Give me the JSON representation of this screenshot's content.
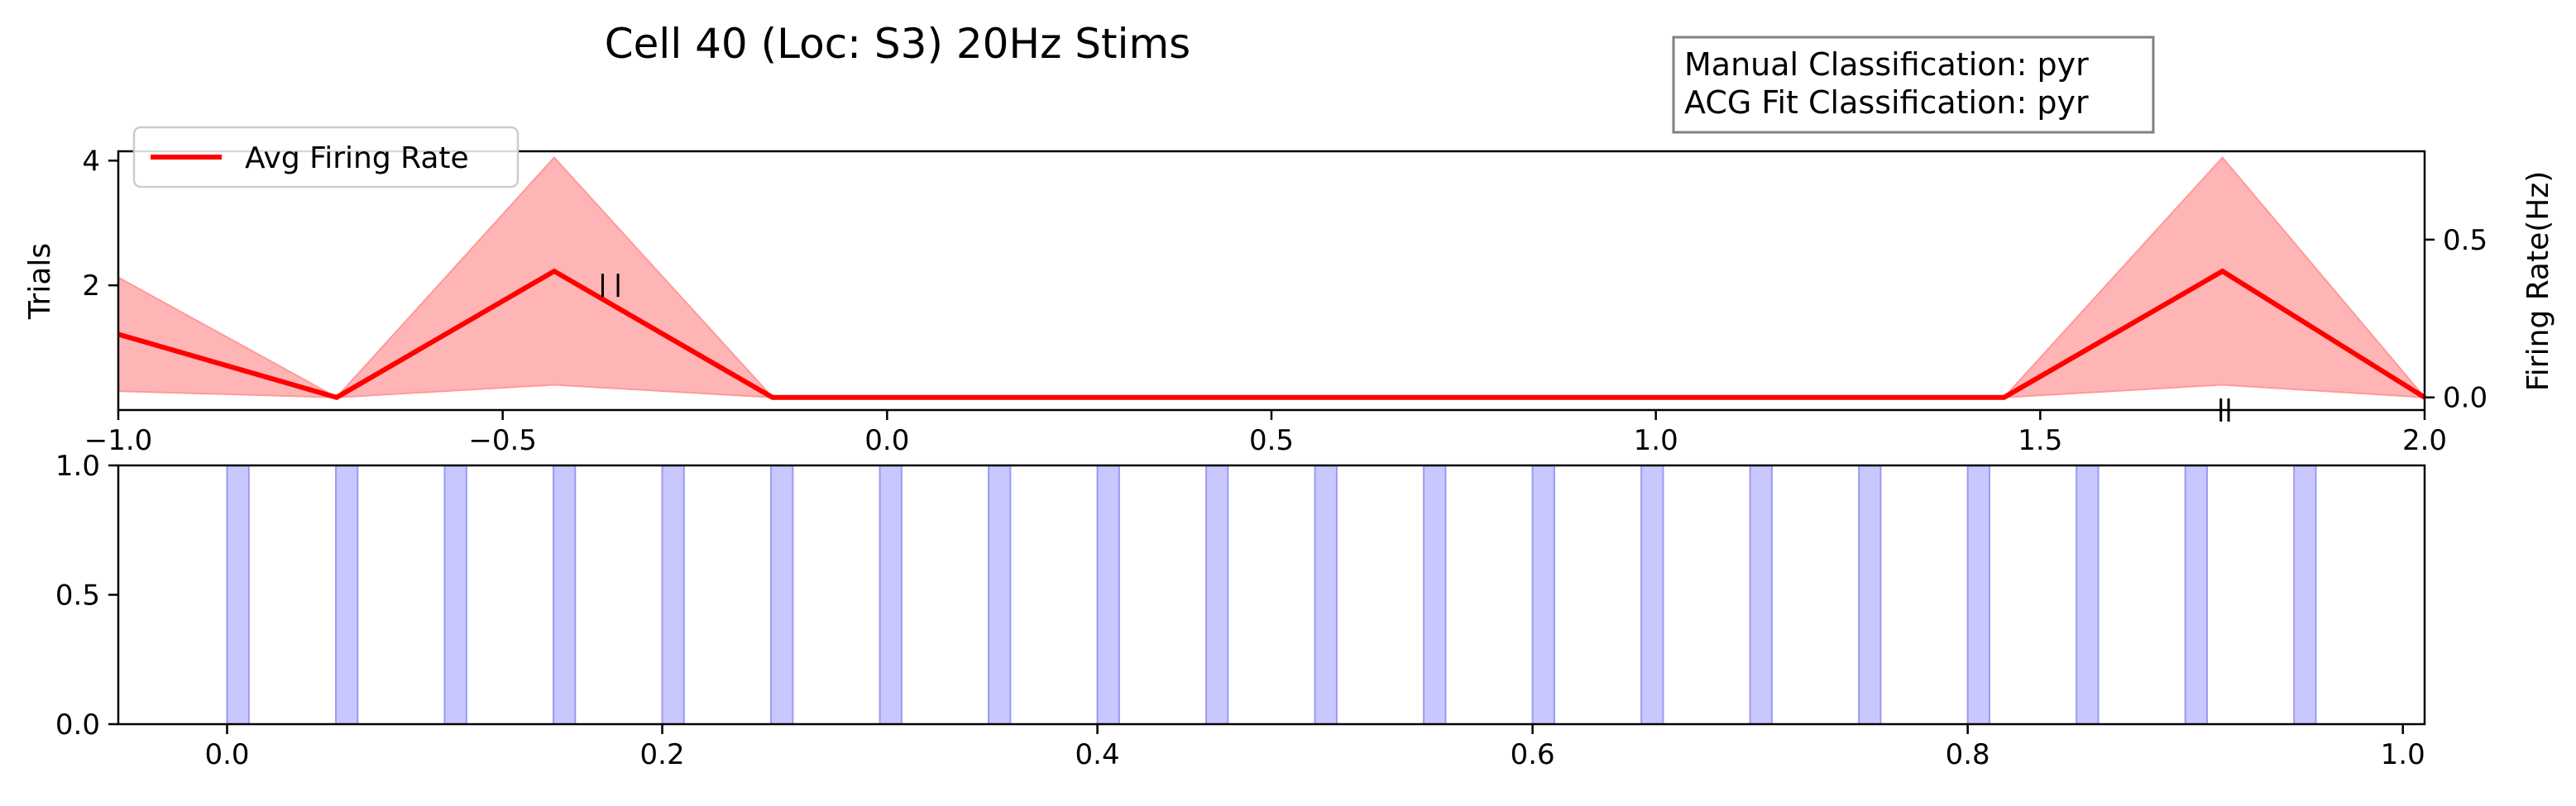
{
  "title": "Cell 40 (Loc: S3) 20Hz Stims",
  "annotation": {
    "lines": [
      "Manual Classification: pyr",
      "ACG Fit Classification: pyr"
    ]
  },
  "colors": {
    "rate_line": "#ff0000",
    "rate_band": "#ff9999",
    "stim_fill": "#c8c8ff",
    "stim_edge": "#9a9af5",
    "raster_tick": "#000000"
  },
  "chart_data": [
    {
      "type": "line",
      "name": "firing-rate-panel",
      "x_ticks": [
        -1.0,
        -0.5,
        0.0,
        0.5,
        1.0,
        1.5,
        2.0
      ],
      "x_tick_labels": [
        "−1.0",
        "−0.5",
        "0.0",
        "0.5",
        "1.0",
        "1.5",
        "2.0"
      ],
      "xlim": [
        -1.0,
        2.0
      ],
      "left_axis": {
        "label": "Trials",
        "ylim": [
          0.0,
          4.15
        ],
        "ticks": [
          2,
          4
        ],
        "tick_labels": [
          "2",
          "4"
        ]
      },
      "right_axis": {
        "label": "Firing Rate(Hz)",
        "ylim": [
          -0.04,
          0.78
        ],
        "ticks": [
          0.0,
          0.5
        ],
        "tick_labels": [
          "0.0",
          "0.5"
        ]
      },
      "legend": {
        "entries": [
          "Avg Firing Rate"
        ],
        "position": "upper-left"
      },
      "series": [
        {
          "name": "Avg Firing Rate",
          "x": [
            -1.0,
            -0.716,
            -0.433,
            -0.149,
            0.135,
            0.419,
            0.702,
            0.986,
            1.27,
            1.453,
            1.737,
            2.0
          ],
          "y": [
            0.2,
            0.0,
            0.4,
            0.0,
            0.0,
            0.0,
            0.0,
            0.0,
            0.0,
            0.0,
            0.4,
            0.0
          ],
          "upper": [
            0.38,
            0.0,
            0.76,
            0.0,
            0.0,
            0.0,
            0.0,
            0.0,
            0.0,
            0.0,
            0.76,
            0.0
          ],
          "lower": [
            0.02,
            0.0,
            0.04,
            0.0,
            0.0,
            0.0,
            0.0,
            0.0,
            0.0,
            0.0,
            0.04,
            0.0
          ]
        }
      ],
      "raster_spikes": [
        {
          "t": -0.37,
          "trial": 2
        },
        {
          "t": -0.35,
          "trial": 2
        },
        {
          "t": 1.735,
          "trial": 0
        },
        {
          "t": 1.745,
          "trial": 0
        }
      ]
    },
    {
      "type": "bar",
      "name": "stim-panel",
      "xlim": [
        -0.05,
        1.01
      ],
      "ylim": [
        0.0,
        1.0
      ],
      "x_ticks": [
        0.0,
        0.2,
        0.4,
        0.6,
        0.8,
        1.0
      ],
      "x_tick_labels": [
        "0.0",
        "0.2",
        "0.4",
        "0.6",
        "0.8",
        "1.0"
      ],
      "y_ticks": [
        0.0,
        0.5,
        1.0
      ],
      "y_tick_labels": [
        "0.0",
        "0.5",
        "1.0"
      ],
      "stim_width": 0.01,
      "stim_onsets": [
        0.0,
        0.05,
        0.1,
        0.15,
        0.2,
        0.25,
        0.3,
        0.35,
        0.4,
        0.45,
        0.5,
        0.55,
        0.6,
        0.65,
        0.7,
        0.75,
        0.8,
        0.85,
        0.9,
        0.95
      ]
    }
  ]
}
